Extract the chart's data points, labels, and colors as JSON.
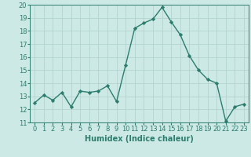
{
  "x": [
    0,
    1,
    2,
    3,
    4,
    5,
    6,
    7,
    8,
    9,
    10,
    11,
    12,
    13,
    14,
    15,
    16,
    17,
    18,
    19,
    20,
    21,
    22,
    23
  ],
  "y": [
    12.5,
    13.1,
    12.7,
    13.3,
    12.2,
    13.4,
    13.3,
    13.4,
    13.8,
    12.6,
    15.4,
    18.2,
    18.6,
    18.9,
    19.8,
    18.7,
    17.7,
    16.1,
    15.0,
    14.3,
    14.0,
    11.1,
    12.2,
    12.4
  ],
  "line_color": "#2d7d6e",
  "marker": "D",
  "markersize": 2.2,
  "linewidth": 1.0,
  "xlim": [
    -0.5,
    23.5
  ],
  "ylim": [
    11,
    20
  ],
  "yticks": [
    11,
    12,
    13,
    14,
    15,
    16,
    17,
    18,
    19,
    20
  ],
  "xticks": [
    0,
    1,
    2,
    3,
    4,
    5,
    6,
    7,
    8,
    9,
    10,
    11,
    12,
    13,
    14,
    15,
    16,
    17,
    18,
    19,
    20,
    21,
    22,
    23
  ],
  "xlabel": "Humidex (Indice chaleur)",
  "xlabel_fontsize": 7,
  "tick_fontsize": 6,
  "background_color": "#cce9e5",
  "grid_color": "#b0d0cc"
}
